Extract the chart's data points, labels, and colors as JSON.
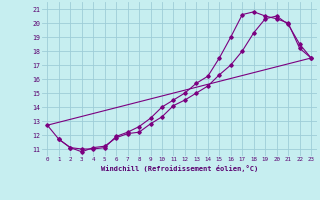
{
  "xlabel": "Windchill (Refroidissement éolien,°C)",
  "xlim": [
    -0.5,
    23.5
  ],
  "ylim": [
    10.5,
    21.5
  ],
  "xticks": [
    0,
    1,
    2,
    3,
    4,
    5,
    6,
    7,
    8,
    9,
    10,
    11,
    12,
    13,
    14,
    15,
    16,
    17,
    18,
    19,
    20,
    21,
    22,
    23
  ],
  "yticks": [
    11,
    12,
    13,
    14,
    15,
    16,
    17,
    18,
    19,
    20,
    21
  ],
  "bg_color": "#c6eef0",
  "grid_color": "#9ecdd8",
  "line_color": "#7b0080",
  "line1_x": [
    0,
    1,
    2,
    3,
    4,
    5,
    6,
    7,
    8,
    9,
    10,
    11,
    12,
    13,
    14,
    15,
    16,
    17,
    18,
    19,
    20,
    21,
    22,
    23
  ],
  "line1_y": [
    12.7,
    11.7,
    11.1,
    10.8,
    11.1,
    11.2,
    11.8,
    12.1,
    12.2,
    12.8,
    13.3,
    14.1,
    14.5,
    15.0,
    15.5,
    16.3,
    17.0,
    18.0,
    19.3,
    20.3,
    20.5,
    19.9,
    18.5,
    17.5
  ],
  "line2_x": [
    1,
    2,
    3,
    4,
    5,
    6,
    7,
    8,
    9,
    10,
    11,
    12,
    13,
    14,
    15,
    16,
    17,
    18,
    19,
    20,
    21,
    22,
    23
  ],
  "line2_y": [
    11.7,
    11.1,
    11.0,
    11.0,
    11.1,
    11.9,
    12.2,
    12.6,
    13.2,
    14.0,
    14.5,
    15.0,
    15.7,
    16.2,
    17.5,
    19.0,
    20.6,
    20.8,
    20.5,
    20.3,
    20.0,
    18.2,
    17.5
  ],
  "line3_x": [
    0,
    23
  ],
  "line3_y": [
    12.7,
    17.5
  ]
}
